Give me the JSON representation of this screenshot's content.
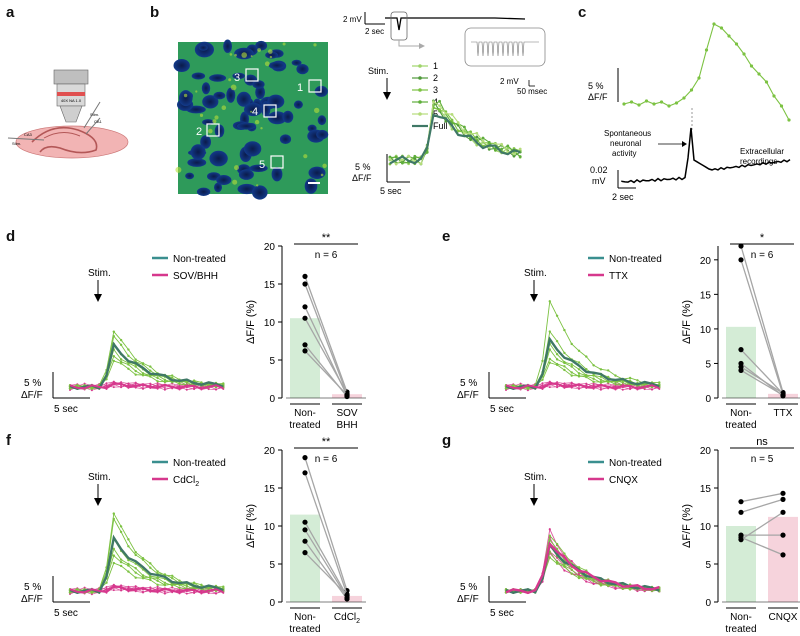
{
  "panel_labels": [
    "a",
    "b",
    "c",
    "d",
    "e",
    "f",
    "g"
  ],
  "a": {
    "objective": "40X NA 1.0",
    "labels": [
      "Stim.",
      "CA1",
      "CA3",
      "Stim."
    ]
  },
  "b": {
    "rois": [
      "1",
      "2",
      "3",
      "4",
      "5"
    ],
    "ephys_scale_v": "2 mV",
    "ephys_scale_t": "2 sec",
    "inset_scale_v": "2 mV",
    "inset_scale_t": "50 msec",
    "stim": "Stim.",
    "legend": [
      "1",
      "2",
      "3",
      "4",
      "5",
      "Full"
    ],
    "scale_v": "5 %",
    "scale_unit": "ΔF/F",
    "scale_t": "5 sec"
  },
  "c": {
    "scale_v": "5 %",
    "scale_unit": "ΔF/F",
    "ann1": "Spontaneous",
    "ann2": "neuronal",
    "ann3": "activity",
    "ann4": "Extracellular",
    "ann5": "recordings",
    "ephys_v": "0.02",
    "ephys_unit": "mV",
    "ephys_t": "2 sec"
  },
  "colors": {
    "green": "#7cc242",
    "green_light": "#a8d67a",
    "teal_mean": "#3f7866",
    "magenta": "#d6388d",
    "bar_green": "#d4ecd6",
    "bar_pink": "#f6d3dc",
    "legend_teal": "#3a8f8f"
  },
  "groups": [
    {
      "id": "d",
      "stim": "Stim.",
      "legend_ctrl": "Non-treated",
      "legend_drug": "SOV/BHH",
      "sig": "**",
      "n": "n = 6",
      "ylabel": "ΔF/F (%)",
      "yticks": [
        "0",
        "5",
        "10",
        "15",
        "20"
      ],
      "xlab_ctrl": [
        "Non-",
        "treated"
      ],
      "xlab_drug": [
        "SOV",
        "BHH"
      ],
      "scale_v": "5 %",
      "scale_unit": "ΔF/F",
      "scale_t": "5 sec"
    },
    {
      "id": "e",
      "stim": "Stim.",
      "legend_ctrl": "Non-treated",
      "legend_drug": "TTX",
      "sig": "*",
      "n": "n = 6",
      "ylabel": "ΔF/F (%)",
      "yticks": [
        "0",
        "5",
        "10",
        "15",
        "20"
      ],
      "xlab_ctrl": [
        "Non-",
        "treated"
      ],
      "xlab_drug": [
        "TTX"
      ],
      "scale_v": "5 %",
      "scale_unit": "ΔF/F",
      "scale_t": "5 sec"
    },
    {
      "id": "f",
      "stim": "Stim.",
      "legend_ctrl": "Non-treated",
      "legend_drug": "CdCl",
      "legend_drug_sub": "2",
      "sig": "**",
      "n": "n = 6",
      "ylabel": "ΔF/F (%)",
      "yticks": [
        "0",
        "5",
        "10",
        "15",
        "20"
      ],
      "xlab_ctrl": [
        "Non-",
        "treated"
      ],
      "xlab_drug": [
        "CdCl"
      ],
      "xlab_drug_sub": "2",
      "scale_v": "5 %",
      "scale_unit": "ΔF/F",
      "scale_t": "5 sec"
    },
    {
      "id": "g",
      "stim": "Stim.",
      "legend_ctrl": "Non-treated",
      "legend_drug": "CNQX",
      "sig": "ns",
      "n": "n = 5",
      "ylabel": "ΔF/F (%)",
      "yticks": [
        "0",
        "5",
        "10",
        "15",
        "20"
      ],
      "xlab_ctrl": [
        "Non-",
        "treated"
      ],
      "xlab_drug": [
        "CNQX"
      ],
      "scale_v": "5 %",
      "scale_unit": "ΔF/F",
      "scale_t": "5 sec"
    }
  ],
  "chart_data": [
    {
      "panel": "d",
      "type": "bar",
      "ylabel": "ΔF/F (%)",
      "ylim": [
        0,
        20
      ],
      "categories": [
        "Non-treated",
        "SOV BHH"
      ],
      "values": [
        10.5,
        0.5
      ],
      "paired": [
        [
          16,
          0.8
        ],
        [
          15,
          0.5
        ],
        [
          12,
          0.3
        ],
        [
          10.5,
          0.6
        ],
        [
          7,
          0.2
        ],
        [
          6.2,
          0.4
        ]
      ]
    },
    {
      "panel": "e",
      "type": "bar",
      "ylabel": "ΔF/F (%)",
      "ylim": [
        0,
        22
      ],
      "categories": [
        "Non-treated",
        "TTX"
      ],
      "values": [
        10.3,
        0.6
      ],
      "paired": [
        [
          22,
          0.8
        ],
        [
          20,
          0.5
        ],
        [
          7,
          0.6
        ],
        [
          5,
          0.3
        ],
        [
          4.5,
          0.7
        ],
        [
          4,
          0.4
        ]
      ]
    },
    {
      "panel": "f",
      "type": "bar",
      "ylabel": "ΔF/F (%)",
      "ylim": [
        0,
        20
      ],
      "categories": [
        "Non-treated",
        "CdCl2"
      ],
      "values": [
        11.5,
        0.8
      ],
      "paired": [
        [
          19,
          1.5
        ],
        [
          17,
          1.0
        ],
        [
          10.5,
          0.8
        ],
        [
          9.5,
          0.6
        ],
        [
          8,
          0.4
        ],
        [
          6.5,
          0.9
        ]
      ]
    },
    {
      "panel": "g",
      "type": "bar",
      "ylabel": "ΔF/F (%)",
      "ylim": [
        0,
        20
      ],
      "categories": [
        "Non-treated",
        "CNQX"
      ],
      "values": [
        10,
        11.2
      ],
      "paired": [
        [
          13.2,
          14.3
        ],
        [
          11.8,
          13.5
        ],
        [
          8.8,
          8.8
        ],
        [
          8.5,
          6.2
        ],
        [
          8.2,
          11.8
        ]
      ]
    }
  ]
}
